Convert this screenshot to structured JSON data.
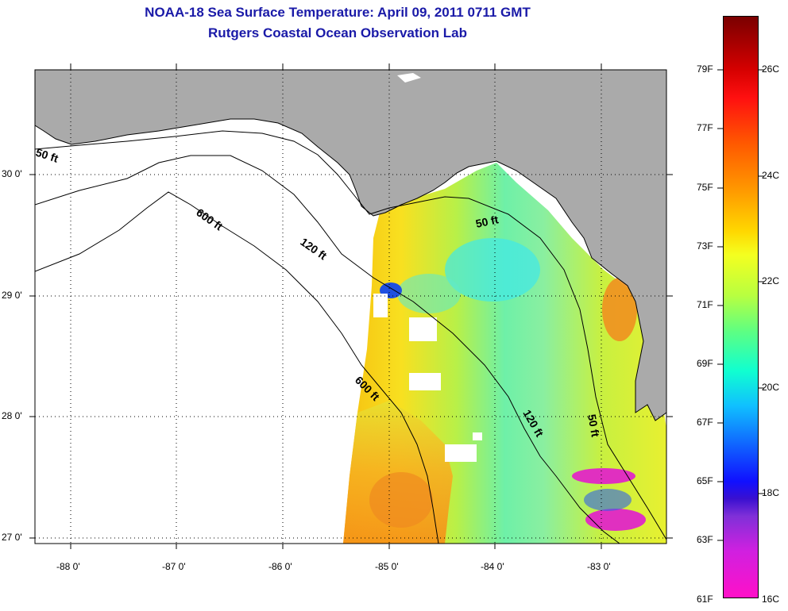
{
  "title": {
    "line1": "NOAA-18 Sea Surface Temperature:  April 09, 2011 0711 GMT",
    "line2": "Rutgers Coastal Ocean Observation Lab"
  },
  "axes": {
    "lon_ticks": [
      "-88 0'",
      "-87 0'",
      "-86 0'",
      "-85 0'",
      "-84 0'",
      "-83 0'"
    ],
    "lat_ticks": [
      "30 0'",
      "29 0'",
      "28 0'",
      "27 0'"
    ],
    "lon_range": [
      -88.35,
      -82.45
    ],
    "lat_range": [
      26.95,
      30.9
    ]
  },
  "contours": [
    {
      "label": "50 ft"
    },
    {
      "label": "600 ft"
    },
    {
      "label": "120 ft"
    },
    {
      "label": "50 ft"
    },
    {
      "label": "600 ft"
    },
    {
      "label": "120 ft"
    },
    {
      "label": "50 ft"
    }
  ],
  "colorbar": {
    "fahrenheit_labels": [
      "79F",
      "77F",
      "75F",
      "73F",
      "71F",
      "69F",
      "67F",
      "65F",
      "63F",
      "61F"
    ],
    "celsius_labels": [
      "26C",
      "24C",
      "22C",
      "20C",
      "18C",
      "16C"
    ],
    "range_f": [
      61,
      81
    ],
    "range_c": [
      16,
      27
    ]
  },
  "colors": {
    "title": "#1a1aa8",
    "land": "#aaaaaa",
    "grid": "#000000"
  }
}
